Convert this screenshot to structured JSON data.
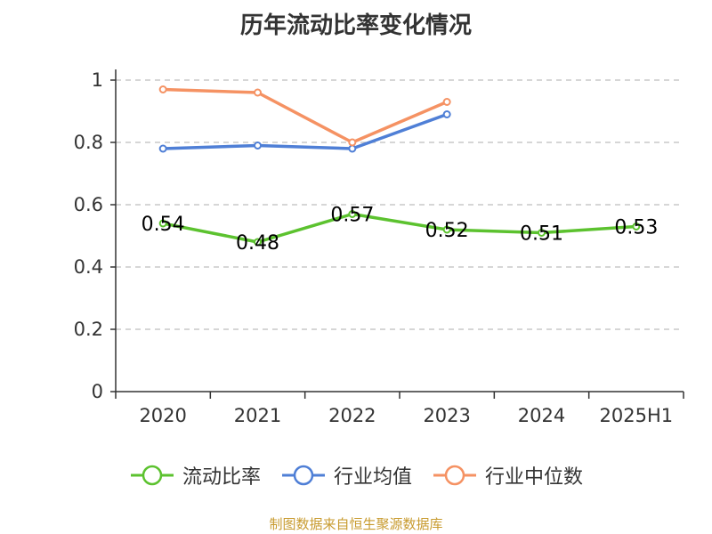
{
  "source": "制图数据来自恒生聚源数据库",
  "chart_data": {
    "type": "line",
    "title": "历年流动比率变化情况",
    "categories": [
      "2020",
      "2021",
      "2022",
      "2023",
      "2024",
      "2025H1"
    ],
    "ylim": [
      0,
      1
    ],
    "yticks": [
      "0",
      "0.2",
      "0.4",
      "0.6",
      "0.8",
      "1"
    ],
    "grid": true,
    "legend_position": "bottom",
    "series": [
      {
        "name": "流动比率",
        "color": "#5cc22f",
        "values": [
          0.54,
          0.48,
          0.57,
          0.52,
          0.51,
          0.53
        ],
        "labels": [
          "0.54",
          "0.48",
          "0.57",
          "0.52",
          "0.51",
          "0.53"
        ],
        "show_labels": true
      },
      {
        "name": "行业均值",
        "color": "#4f7fd6",
        "values": [
          0.78,
          0.79,
          0.78,
          0.89,
          null,
          null
        ],
        "show_labels": false
      },
      {
        "name": "行业中位数",
        "color": "#f59263",
        "values": [
          0.97,
          0.96,
          0.8,
          0.93,
          null,
          null
        ],
        "show_labels": false
      }
    ]
  }
}
